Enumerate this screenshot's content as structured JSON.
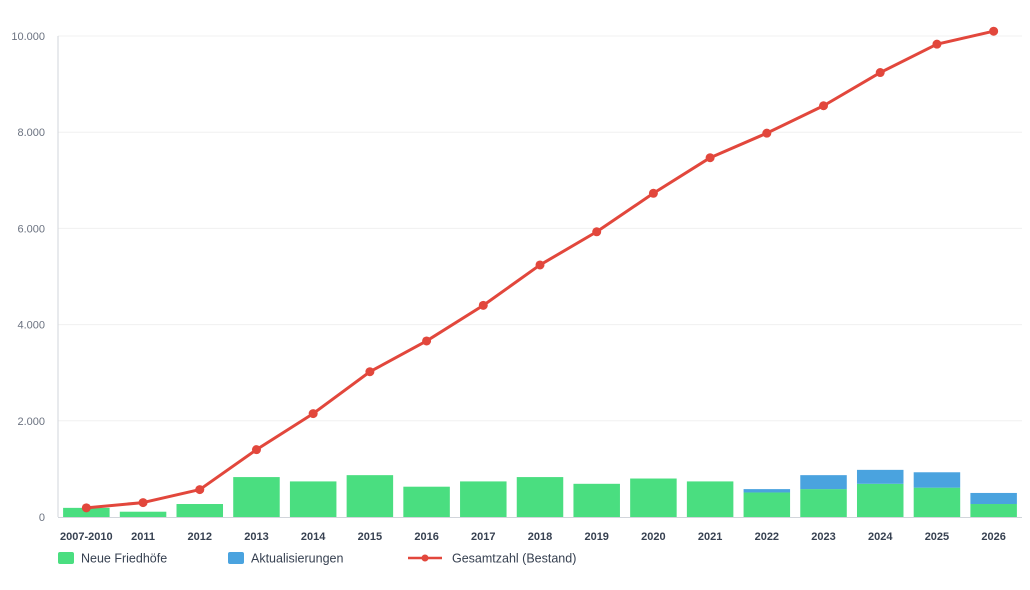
{
  "chart_data": {
    "type": "bar",
    "categories": [
      "2007-2010",
      "2011",
      "2012",
      "2013",
      "2014",
      "2015",
      "2016",
      "2017",
      "2018",
      "2019",
      "2020",
      "2021",
      "2022",
      "2023",
      "2024",
      "2025",
      "2026"
    ],
    "series": [
      {
        "name": "Neue Friedhöfe",
        "type": "bar",
        "stack": "a",
        "color": "#4ade80",
        "values": [
          190,
          110,
          270,
          830,
          740,
          870,
          630,
          740,
          830,
          690,
          800,
          740,
          510,
          580,
          690,
          610,
          270
        ]
      },
      {
        "name": "Aktualisierungen",
        "type": "bar",
        "stack": "a",
        "color": "#4aa3df",
        "values": [
          0,
          0,
          0,
          0,
          0,
          0,
          0,
          0,
          0,
          0,
          0,
          0,
          70,
          290,
          290,
          320,
          230
        ]
      },
      {
        "name": "Gesamtzahl (Bestand)",
        "type": "line",
        "color": "#e2473c",
        "values": [
          190,
          300,
          570,
          1400,
          2150,
          3020,
          3660,
          4400,
          5240,
          5930,
          6730,
          7470,
          7980,
          8550,
          9240,
          9830,
          10100
        ]
      }
    ],
    "yticks": [
      "0",
      "2.000",
      "4.000",
      "6.000",
      "8.000",
      "10.000"
    ],
    "ytick_values": [
      0,
      2000,
      4000,
      6000,
      8000,
      10000
    ],
    "ylim": [
      0,
      10000
    ],
    "title": "",
    "xlabel": "",
    "ylabel": "",
    "grid": true,
    "legend": "bottom-left"
  }
}
